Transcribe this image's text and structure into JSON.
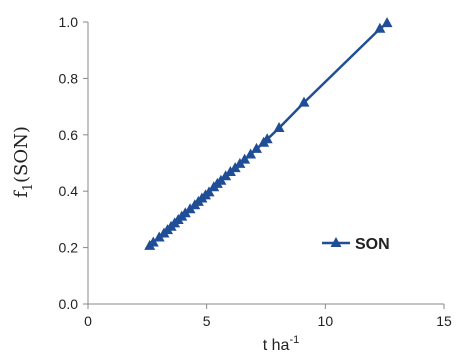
{
  "chart_data": {
    "type": "line",
    "title": "",
    "xlabel": "t ha",
    "xlabel_sup": "-1",
    "ylabel": "f",
    "ylabel_sub": "1",
    "ylabel_rest": "(SON)",
    "xlim": [
      0,
      15
    ],
    "ylim": [
      0,
      1.0
    ],
    "xticks": [
      "0",
      "5",
      "10",
      "15"
    ],
    "yticks": [
      "0.0",
      "0.2",
      "0.4",
      "0.6",
      "0.8",
      "1.0"
    ],
    "grid": false,
    "legend_position": "bottom-right",
    "series": [
      {
        "name": "SON",
        "color": "#1f4e96",
        "marker": "triangle",
        "x": [
          2.6,
          2.75,
          3.0,
          3.2,
          3.35,
          3.5,
          3.65,
          3.8,
          3.95,
          4.1,
          4.3,
          4.5,
          4.65,
          4.8,
          4.95,
          5.1,
          5.3,
          5.45,
          5.6,
          5.8,
          6.0,
          6.2,
          6.4,
          6.6,
          6.85,
          7.1,
          7.4,
          7.55,
          8.05,
          9.1,
          12.3,
          12.6
        ],
        "values": [
          0.206,
          0.218,
          0.236,
          0.25,
          0.262,
          0.274,
          0.286,
          0.298,
          0.31,
          0.322,
          0.336,
          0.35,
          0.362,
          0.374,
          0.385,
          0.396,
          0.414,
          0.426,
          0.437,
          0.453,
          0.468,
          0.482,
          0.497,
          0.512,
          0.53,
          0.55,
          0.572,
          0.584,
          0.624,
          0.714,
          0.976,
          0.996
        ]
      }
    ]
  }
}
